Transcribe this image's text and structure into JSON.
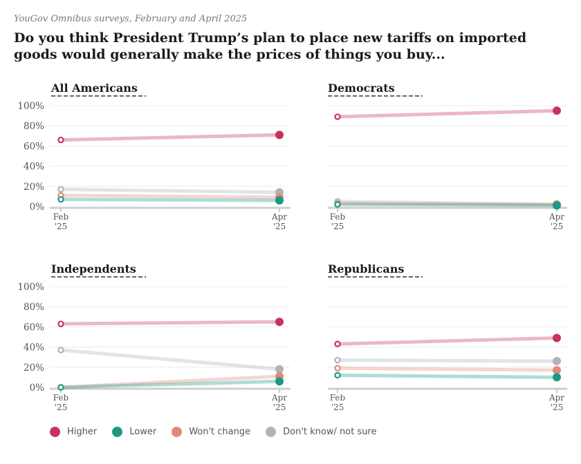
{
  "header": {
    "source": "YouGov Omnibus surveys, February and April 2025",
    "title": "Do you think President Trump’s plan to place new tariffs on imported goods would generally make the prices of things you buy..."
  },
  "legend": [
    {
      "label": "Higher",
      "color": "#c9325a"
    },
    {
      "label": "Lower",
      "color": "#1a9a84"
    },
    {
      "label": "Won't change",
      "color": "#e08a7a"
    },
    {
      "label": "Don't know/ not sure",
      "color": "#b0b3b8"
    }
  ],
  "chart_data": [
    {
      "type": "line",
      "title": "All Americans",
      "x": [
        "Feb '25",
        "Apr '25"
      ],
      "ylim": [
        0,
        100
      ],
      "yticks": [
        "0%",
        "20%",
        "40%",
        "60%",
        "80%",
        "100%"
      ],
      "series": [
        {
          "name": "Higher",
          "values": [
            66,
            71
          ]
        },
        {
          "name": "Lower",
          "values": [
            7,
            6
          ]
        },
        {
          "name": "Won't change",
          "values": [
            11,
            9
          ]
        },
        {
          "name": "Don't know/ not sure",
          "values": [
            17,
            14
          ]
        }
      ]
    },
    {
      "type": "line",
      "title": "Democrats",
      "x": [
        "Feb '25",
        "Apr '25"
      ],
      "ylim": [
        0,
        100
      ],
      "yticks": [],
      "series": [
        {
          "name": "Higher",
          "values": [
            89,
            95
          ]
        },
        {
          "name": "Lower",
          "values": [
            2,
            1
          ]
        },
        {
          "name": "Won't change",
          "values": [
            3,
            2
          ]
        },
        {
          "name": "Don't know/ not sure",
          "values": [
            5,
            2
          ]
        }
      ]
    },
    {
      "type": "line",
      "title": "Independents",
      "x": [
        "Feb '25",
        "Apr '25"
      ],
      "ylim": [
        0,
        100
      ],
      "yticks": [
        "0%",
        "20%",
        "40%",
        "60%",
        "80%",
        "100%"
      ],
      "series": [
        {
          "name": "Higher",
          "values": [
            63,
            65
          ]
        },
        {
          "name": "Lower",
          "values": [
            0,
            6
          ]
        },
        {
          "name": "Won't change",
          "values": [
            0,
            11
          ]
        },
        {
          "name": "Don't know/ not sure",
          "values": [
            37,
            18
          ]
        }
      ]
    },
    {
      "type": "line",
      "title": "Republicans",
      "x": [
        "Feb '25",
        "Apr '25"
      ],
      "ylim": [
        0,
        100
      ],
      "yticks": [],
      "series": [
        {
          "name": "Higher",
          "values": [
            43,
            49
          ]
        },
        {
          "name": "Lower",
          "values": [
            12,
            10
          ]
        },
        {
          "name": "Won't change",
          "values": [
            19,
            17
          ]
        },
        {
          "name": "Don't know/ not sure",
          "values": [
            27,
            26
          ]
        }
      ]
    }
  ]
}
